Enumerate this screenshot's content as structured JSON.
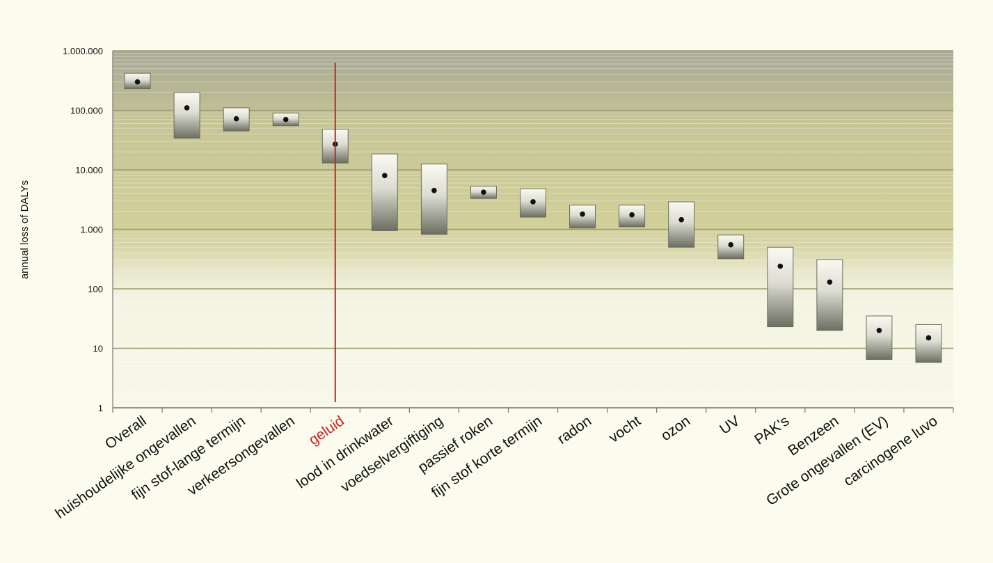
{
  "chart_data": {
    "type": "range-bar",
    "ylabel": "annual loss of DALYs",
    "yscale": "log",
    "ylim": [
      1,
      1000000
    ],
    "yticks": [
      {
        "value": 1,
        "label": "1"
      },
      {
        "value": 10,
        "label": "10"
      },
      {
        "value": 100,
        "label": "100"
      },
      {
        "value": 1000,
        "label": "1.000"
      },
      {
        "value": 10000,
        "label": "10.000"
      },
      {
        "value": 100000,
        "label": "100.000"
      },
      {
        "value": 1000000,
        "label": "1.000.000"
      }
    ],
    "grid": true,
    "highlight_color": "#cc2222",
    "bar_color_light": "#fafaf2",
    "bar_color_dark": "#6b6e60",
    "series": [
      {
        "category": "Overall",
        "low": 230000,
        "high": 420000,
        "value": 300000
      },
      {
        "category": "huishoudelijke ongevallen",
        "low": 34000,
        "high": 200000,
        "value": 110000
      },
      {
        "category": "fijn stof-lange termijn",
        "low": 45000,
        "high": 110000,
        "value": 72000
      },
      {
        "category": "verkeersongevallen",
        "low": 55000,
        "high": 90000,
        "value": 70000
      },
      {
        "category": "geluid",
        "low": 13000,
        "high": 48000,
        "value": 27000,
        "highlight": true
      },
      {
        "category": "lood in drinkwater",
        "low": 950,
        "high": 18500,
        "value": 8000
      },
      {
        "category": "voedselvergiftiging",
        "low": 820,
        "high": 12500,
        "value": 4500
      },
      {
        "category": "passief roken",
        "low": 3300,
        "high": 5300,
        "value": 4200
      },
      {
        "category": "fijn stof korte termijn",
        "low": 1600,
        "high": 4800,
        "value": 2900
      },
      {
        "category": "radon",
        "low": 1050,
        "high": 2550,
        "value": 1800
      },
      {
        "category": "vocht",
        "low": 1100,
        "high": 2550,
        "value": 1750
      },
      {
        "category": "ozon",
        "low": 500,
        "high": 2900,
        "value": 1450
      },
      {
        "category": "UV",
        "low": 320,
        "high": 800,
        "value": 550
      },
      {
        "category": "PAK's",
        "low": 23,
        "high": 500,
        "value": 240
      },
      {
        "category": "Benzeen",
        "low": 20,
        "high": 310,
        "value": 130
      },
      {
        "category": "Grote ongevallen (EV)",
        "low": 6.5,
        "high": 35,
        "value": 20
      },
      {
        "category": "carcinogene luvo",
        "low": 5.8,
        "high": 25,
        "value": 15
      }
    ]
  }
}
